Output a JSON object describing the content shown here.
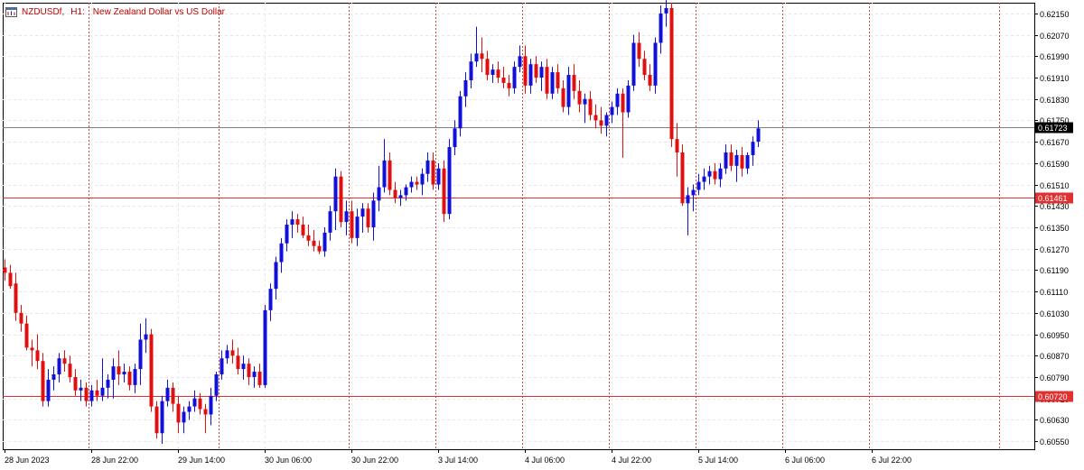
{
  "header": {
    "symbol": "NZDUSDf,",
    "timeframe": "H1:",
    "description": "New Zealand Dollar vs US Dollar"
  },
  "colors": {
    "bull": "#1010d8",
    "bear": "#e01010",
    "hline": "#e03030",
    "bid_line": "#808080",
    "grid": "#e6e6e6",
    "session": "#e04040",
    "axis": "#000000"
  },
  "chart_data": {
    "type": "candlestick",
    "instrument": "NZDUSDf",
    "timeframe": "H1",
    "y_ticks": [
      "0.62150",
      "0.62070",
      "0.61990",
      "0.61910",
      "0.61830",
      "0.61750",
      "0.61670",
      "0.61590",
      "0.61510",
      "0.61430",
      "0.61350",
      "0.61270",
      "0.61190",
      "0.61110",
      "0.61030",
      "0.60950",
      "0.60870",
      "0.60790",
      "0.60710",
      "0.60630",
      "0.60550"
    ],
    "ylim": [
      0.6052,
      0.6219
    ],
    "x_labels": [
      "28 Jun 2023",
      "28 Jun 22:00",
      "29 Jun 14:00",
      "30 Jun 06:00",
      "30 Jun 22:00",
      "3 Jul 14:00",
      "4 Jul 06:00",
      "4 Jul 22:00",
      "5 Jul 14:00",
      "6 Jul 06:00",
      "6 Jul 22:00"
    ],
    "x_label_bar_index": [
      0,
      16,
      32,
      48,
      64,
      80,
      96,
      112,
      128,
      144,
      160
    ],
    "horizontal_lines": [
      {
        "label": "0.61723",
        "value": 0.61723,
        "kind": "bid"
      },
      {
        "label": "0.61461",
        "value": 0.61461,
        "kind": "level"
      },
      {
        "label": "0.60720",
        "value": 0.6072,
        "kind": "level"
      }
    ],
    "session_separator_bar_index": [
      16,
      40,
      64,
      80,
      96,
      112,
      128,
      144,
      160,
      184
    ],
    "grid": true,
    "candles": [
      {
        "o": 0.612,
        "h": 0.6123,
        "l": 0.6115,
        "c": 0.6118
      },
      {
        "o": 0.6118,
        "h": 0.6121,
        "l": 0.6112,
        "c": 0.6113
      },
      {
        "o": 0.6114,
        "h": 0.6118,
        "l": 0.61,
        "c": 0.6103
      },
      {
        "o": 0.6103,
        "h": 0.6106,
        "l": 0.6096,
        "c": 0.6099
      },
      {
        "o": 0.6099,
        "h": 0.6102,
        "l": 0.6089,
        "c": 0.609
      },
      {
        "o": 0.609,
        "h": 0.6093,
        "l": 0.6083,
        "c": 0.6089
      },
      {
        "o": 0.6089,
        "h": 0.6095,
        "l": 0.6082,
        "c": 0.6085
      },
      {
        "o": 0.6085,
        "h": 0.6088,
        "l": 0.6068,
        "c": 0.607
      },
      {
        "o": 0.607,
        "h": 0.6082,
        "l": 0.6068,
        "c": 0.6078
      },
      {
        "o": 0.6078,
        "h": 0.6083,
        "l": 0.6074,
        "c": 0.608
      },
      {
        "o": 0.608,
        "h": 0.6088,
        "l": 0.6077,
        "c": 0.6086
      },
      {
        "o": 0.6086,
        "h": 0.6089,
        "l": 0.6081,
        "c": 0.6084
      },
      {
        "o": 0.6084,
        "h": 0.6087,
        "l": 0.6077,
        "c": 0.6079
      },
      {
        "o": 0.6079,
        "h": 0.6082,
        "l": 0.6072,
        "c": 0.6074
      },
      {
        "o": 0.6074,
        "h": 0.6078,
        "l": 0.607,
        "c": 0.6075
      },
      {
        "o": 0.6075,
        "h": 0.6077,
        "l": 0.6068,
        "c": 0.607
      },
      {
        "o": 0.607,
        "h": 0.6076,
        "l": 0.6068,
        "c": 0.6074
      },
      {
        "o": 0.6074,
        "h": 0.6078,
        "l": 0.607,
        "c": 0.6072
      },
      {
        "o": 0.6072,
        "h": 0.6086,
        "l": 0.607,
        "c": 0.6075
      },
      {
        "o": 0.6075,
        "h": 0.608,
        "l": 0.6071,
        "c": 0.6078
      },
      {
        "o": 0.6078,
        "h": 0.6086,
        "l": 0.6071,
        "c": 0.6083
      },
      {
        "o": 0.6083,
        "h": 0.6089,
        "l": 0.6076,
        "c": 0.608
      },
      {
        "o": 0.608,
        "h": 0.6084,
        "l": 0.6077,
        "c": 0.6081
      },
      {
        "o": 0.6081,
        "h": 0.6083,
        "l": 0.6074,
        "c": 0.6076
      },
      {
        "o": 0.6076,
        "h": 0.6084,
        "l": 0.6073,
        "c": 0.6082
      },
      {
        "o": 0.6082,
        "h": 0.6099,
        "l": 0.6076,
        "c": 0.6093
      },
      {
        "o": 0.6093,
        "h": 0.6101,
        "l": 0.6088,
        "c": 0.6095
      },
      {
        "o": 0.6095,
        "h": 0.6097,
        "l": 0.6066,
        "c": 0.6068
      },
      {
        "o": 0.6068,
        "h": 0.607,
        "l": 0.6056,
        "c": 0.6058
      },
      {
        "o": 0.6058,
        "h": 0.6072,
        "l": 0.6054,
        "c": 0.607
      },
      {
        "o": 0.607,
        "h": 0.6078,
        "l": 0.6068,
        "c": 0.6075
      },
      {
        "o": 0.6075,
        "h": 0.6077,
        "l": 0.6066,
        "c": 0.6069
      },
      {
        "o": 0.6069,
        "h": 0.6072,
        "l": 0.6058,
        "c": 0.6062
      },
      {
        "o": 0.6062,
        "h": 0.6068,
        "l": 0.6058,
        "c": 0.6066
      },
      {
        "o": 0.6066,
        "h": 0.607,
        "l": 0.6063,
        "c": 0.6068
      },
      {
        "o": 0.6068,
        "h": 0.6074,
        "l": 0.6066,
        "c": 0.6071
      },
      {
        "o": 0.6071,
        "h": 0.6073,
        "l": 0.6065,
        "c": 0.6067
      },
      {
        "o": 0.6067,
        "h": 0.6069,
        "l": 0.6058,
        "c": 0.6065
      },
      {
        "o": 0.6065,
        "h": 0.6075,
        "l": 0.6061,
        "c": 0.6072
      },
      {
        "o": 0.6072,
        "h": 0.6081,
        "l": 0.607,
        "c": 0.608
      },
      {
        "o": 0.608,
        "h": 0.6089,
        "l": 0.6078,
        "c": 0.6086
      },
      {
        "o": 0.6086,
        "h": 0.6091,
        "l": 0.6084,
        "c": 0.6089
      },
      {
        "o": 0.6089,
        "h": 0.6093,
        "l": 0.6084,
        "c": 0.6087
      },
      {
        "o": 0.6087,
        "h": 0.609,
        "l": 0.608,
        "c": 0.6082
      },
      {
        "o": 0.6082,
        "h": 0.6087,
        "l": 0.6078,
        "c": 0.6084
      },
      {
        "o": 0.6084,
        "h": 0.6086,
        "l": 0.6076,
        "c": 0.6079
      },
      {
        "o": 0.6079,
        "h": 0.6083,
        "l": 0.6075,
        "c": 0.6081
      },
      {
        "o": 0.6081,
        "h": 0.6084,
        "l": 0.6075,
        "c": 0.6076
      },
      {
        "o": 0.6076,
        "h": 0.6106,
        "l": 0.6075,
        "c": 0.6104
      },
      {
        "o": 0.6104,
        "h": 0.6114,
        "l": 0.61,
        "c": 0.6112
      },
      {
        "o": 0.6112,
        "h": 0.6124,
        "l": 0.6108,
        "c": 0.6122
      },
      {
        "o": 0.6122,
        "h": 0.6131,
        "l": 0.6118,
        "c": 0.6129
      },
      {
        "o": 0.6129,
        "h": 0.6138,
        "l": 0.6126,
        "c": 0.6136
      },
      {
        "o": 0.6136,
        "h": 0.6141,
        "l": 0.6131,
        "c": 0.6138
      },
      {
        "o": 0.6138,
        "h": 0.614,
        "l": 0.6133,
        "c": 0.6136
      },
      {
        "o": 0.6136,
        "h": 0.6139,
        "l": 0.6131,
        "c": 0.6132
      },
      {
        "o": 0.6132,
        "h": 0.6136,
        "l": 0.6128,
        "c": 0.613
      },
      {
        "o": 0.613,
        "h": 0.6134,
        "l": 0.6126,
        "c": 0.6128
      },
      {
        "o": 0.6128,
        "h": 0.613,
        "l": 0.6125,
        "c": 0.6126
      },
      {
        "o": 0.6126,
        "h": 0.6135,
        "l": 0.6124,
        "c": 0.6133
      },
      {
        "o": 0.6133,
        "h": 0.6143,
        "l": 0.613,
        "c": 0.6141
      },
      {
        "o": 0.6141,
        "h": 0.6157,
        "l": 0.6134,
        "c": 0.6154
      },
      {
        "o": 0.6154,
        "h": 0.6156,
        "l": 0.6135,
        "c": 0.6137
      },
      {
        "o": 0.6137,
        "h": 0.6145,
        "l": 0.6132,
        "c": 0.6141
      },
      {
        "o": 0.6141,
        "h": 0.6145,
        "l": 0.6129,
        "c": 0.6131
      },
      {
        "o": 0.6131,
        "h": 0.6142,
        "l": 0.6128,
        "c": 0.6139
      },
      {
        "o": 0.6139,
        "h": 0.6144,
        "l": 0.6133,
        "c": 0.6142
      },
      {
        "o": 0.6142,
        "h": 0.6144,
        "l": 0.6133,
        "c": 0.6135
      },
      {
        "o": 0.6135,
        "h": 0.6148,
        "l": 0.613,
        "c": 0.6145
      },
      {
        "o": 0.6145,
        "h": 0.6158,
        "l": 0.6141,
        "c": 0.615
      },
      {
        "o": 0.615,
        "h": 0.6168,
        "l": 0.6148,
        "c": 0.616
      },
      {
        "o": 0.616,
        "h": 0.6163,
        "l": 0.6147,
        "c": 0.6149
      },
      {
        "o": 0.6149,
        "h": 0.6152,
        "l": 0.6144,
        "c": 0.6146
      },
      {
        "o": 0.6146,
        "h": 0.6149,
        "l": 0.6143,
        "c": 0.6147
      },
      {
        "o": 0.6147,
        "h": 0.6151,
        "l": 0.6145,
        "c": 0.615
      },
      {
        "o": 0.615,
        "h": 0.6154,
        "l": 0.6148,
        "c": 0.6152
      },
      {
        "o": 0.6152,
        "h": 0.6154,
        "l": 0.6149,
        "c": 0.6151
      },
      {
        "o": 0.6151,
        "h": 0.6157,
        "l": 0.6147,
        "c": 0.6155
      },
      {
        "o": 0.6155,
        "h": 0.6163,
        "l": 0.6152,
        "c": 0.616
      },
      {
        "o": 0.616,
        "h": 0.6163,
        "l": 0.6149,
        "c": 0.6151
      },
      {
        "o": 0.6151,
        "h": 0.6159,
        "l": 0.6149,
        "c": 0.6157
      },
      {
        "o": 0.6157,
        "h": 0.616,
        "l": 0.6137,
        "c": 0.614
      },
      {
        "o": 0.614,
        "h": 0.6168,
        "l": 0.6138,
        "c": 0.6165
      },
      {
        "o": 0.6165,
        "h": 0.6175,
        "l": 0.6162,
        "c": 0.6172
      },
      {
        "o": 0.6172,
        "h": 0.6186,
        "l": 0.6169,
        "c": 0.6184
      },
      {
        "o": 0.6184,
        "h": 0.6193,
        "l": 0.618,
        "c": 0.619
      },
      {
        "o": 0.619,
        "h": 0.62,
        "l": 0.6187,
        "c": 0.6197
      },
      {
        "o": 0.6197,
        "h": 0.621,
        "l": 0.6195,
        "c": 0.62
      },
      {
        "o": 0.62,
        "h": 0.6206,
        "l": 0.6193,
        "c": 0.6198
      },
      {
        "o": 0.6198,
        "h": 0.6201,
        "l": 0.619,
        "c": 0.6192
      },
      {
        "o": 0.6192,
        "h": 0.6196,
        "l": 0.6189,
        "c": 0.6194
      },
      {
        "o": 0.6194,
        "h": 0.6197,
        "l": 0.6189,
        "c": 0.6191
      },
      {
        "o": 0.6191,
        "h": 0.6195,
        "l": 0.6187,
        "c": 0.6189
      },
      {
        "o": 0.6189,
        "h": 0.6192,
        "l": 0.6184,
        "c": 0.6187
      },
      {
        "o": 0.6187,
        "h": 0.6197,
        "l": 0.6185,
        "c": 0.6195
      },
      {
        "o": 0.6195,
        "h": 0.6203,
        "l": 0.6193,
        "c": 0.6199
      },
      {
        "o": 0.6199,
        "h": 0.6203,
        "l": 0.6185,
        "c": 0.6188
      },
      {
        "o": 0.6188,
        "h": 0.6198,
        "l": 0.6185,
        "c": 0.6196
      },
      {
        "o": 0.6196,
        "h": 0.6199,
        "l": 0.6189,
        "c": 0.6191
      },
      {
        "o": 0.6191,
        "h": 0.6197,
        "l": 0.6186,
        "c": 0.6195
      },
      {
        "o": 0.6195,
        "h": 0.6198,
        "l": 0.6183,
        "c": 0.6185
      },
      {
        "o": 0.6185,
        "h": 0.6195,
        "l": 0.6183,
        "c": 0.6193
      },
      {
        "o": 0.6193,
        "h": 0.6196,
        "l": 0.6185,
        "c": 0.6187
      },
      {
        "o": 0.6187,
        "h": 0.619,
        "l": 0.6178,
        "c": 0.618
      },
      {
        "o": 0.618,
        "h": 0.6195,
        "l": 0.6177,
        "c": 0.6192
      },
      {
        "o": 0.6192,
        "h": 0.6196,
        "l": 0.6183,
        "c": 0.6186
      },
      {
        "o": 0.6186,
        "h": 0.619,
        "l": 0.6178,
        "c": 0.6181
      },
      {
        "o": 0.6181,
        "h": 0.6185,
        "l": 0.6174,
        "c": 0.6183
      },
      {
        "o": 0.6183,
        "h": 0.6186,
        "l": 0.6175,
        "c": 0.6177
      },
      {
        "o": 0.6177,
        "h": 0.6181,
        "l": 0.6172,
        "c": 0.6175
      },
      {
        "o": 0.6175,
        "h": 0.618,
        "l": 0.617,
        "c": 0.6173
      },
      {
        "o": 0.6173,
        "h": 0.6178,
        "l": 0.6169,
        "c": 0.6177
      },
      {
        "o": 0.6177,
        "h": 0.6182,
        "l": 0.6174,
        "c": 0.618
      },
      {
        "o": 0.618,
        "h": 0.6187,
        "l": 0.6177,
        "c": 0.6185
      },
      {
        "o": 0.6185,
        "h": 0.6187,
        "l": 0.6161,
        "c": 0.6178
      },
      {
        "o": 0.6178,
        "h": 0.619,
        "l": 0.6176,
        "c": 0.6188
      },
      {
        "o": 0.6188,
        "h": 0.6207,
        "l": 0.6186,
        "c": 0.6204
      },
      {
        "o": 0.6204,
        "h": 0.6208,
        "l": 0.6195,
        "c": 0.6198
      },
      {
        "o": 0.6198,
        "h": 0.6201,
        "l": 0.619,
        "c": 0.6192
      },
      {
        "o": 0.6192,
        "h": 0.6196,
        "l": 0.6186,
        "c": 0.6188
      },
      {
        "o": 0.6188,
        "h": 0.6206,
        "l": 0.6185,
        "c": 0.6204
      },
      {
        "o": 0.6204,
        "h": 0.6218,
        "l": 0.62,
        "c": 0.6215
      },
      {
        "o": 0.6215,
        "h": 0.622,
        "l": 0.621,
        "c": 0.6217
      },
      {
        "o": 0.6217,
        "h": 0.6219,
        "l": 0.6165,
        "c": 0.6168
      },
      {
        "o": 0.6168,
        "h": 0.6174,
        "l": 0.6154,
        "c": 0.6163
      },
      {
        "o": 0.6163,
        "h": 0.6166,
        "l": 0.6143,
        "c": 0.6144
      },
      {
        "o": 0.6144,
        "h": 0.615,
        "l": 0.6132,
        "c": 0.6147
      },
      {
        "o": 0.6147,
        "h": 0.6151,
        "l": 0.6141,
        "c": 0.6149
      },
      {
        "o": 0.6149,
        "h": 0.6155,
        "l": 0.6147,
        "c": 0.6152
      },
      {
        "o": 0.6152,
        "h": 0.6157,
        "l": 0.6149,
        "c": 0.6154
      },
      {
        "o": 0.6154,
        "h": 0.6158,
        "l": 0.6151,
        "c": 0.6156
      },
      {
        "o": 0.6156,
        "h": 0.6159,
        "l": 0.6151,
        "c": 0.6153
      },
      {
        "o": 0.6153,
        "h": 0.6159,
        "l": 0.615,
        "c": 0.6157
      },
      {
        "o": 0.6157,
        "h": 0.6166,
        "l": 0.6155,
        "c": 0.6163
      },
      {
        "o": 0.6163,
        "h": 0.6166,
        "l": 0.6156,
        "c": 0.6158
      },
      {
        "o": 0.6158,
        "h": 0.6164,
        "l": 0.6152,
        "c": 0.6162
      },
      {
        "o": 0.6162,
        "h": 0.6165,
        "l": 0.6154,
        "c": 0.6157
      },
      {
        "o": 0.6157,
        "h": 0.6163,
        "l": 0.6155,
        "c": 0.6162
      },
      {
        "o": 0.6162,
        "h": 0.6169,
        "l": 0.6158,
        "c": 0.6167
      },
      {
        "o": 0.6167,
        "h": 0.6175,
        "l": 0.6165,
        "c": 0.6172
      }
    ]
  }
}
